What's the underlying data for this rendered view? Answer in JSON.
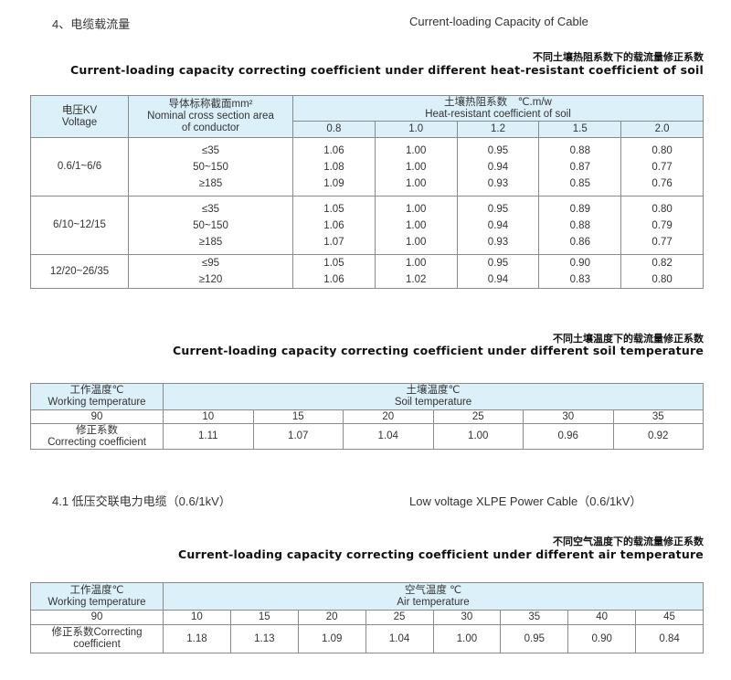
{
  "section4": {
    "cn": "4、电缆载流量",
    "en": "Current-loading Capacity of Cable"
  },
  "table1": {
    "caption_cn": "不同土壤热阻系数下的载流量修正系数",
    "caption_en": "Current-loading capacity correcting coefficient under different heat-resistant coefficient of soil",
    "h_voltage_cn": "电压KV",
    "h_voltage_en": "Voltage",
    "h_conductor_cn": "导体标称截面mm²",
    "h_conductor_en": "Nominal cross section area of conductor",
    "h_soil_cn": "土壤热阻系数　℃.m/w",
    "h_soil_en": "Heat-resistant coefficient of soil",
    "coefficients": [
      "0.8",
      "1.0",
      "1.2",
      "1.5",
      "2.0"
    ],
    "groups": [
      {
        "voltage": "0.6/1~6/6",
        "sections": [
          "≤35",
          "50~150",
          "≥185"
        ],
        "values": [
          [
            "1.06",
            "1.08",
            "1.09"
          ],
          [
            "1.00",
            "1.00",
            "1.00"
          ],
          [
            "0.95",
            "0.94",
            "0.93"
          ],
          [
            "0.88",
            "0.87",
            "0.85"
          ],
          [
            "0.80",
            "0.77",
            "0.76"
          ]
        ]
      },
      {
        "voltage": "6/10~12/15",
        "sections": [
          "≤35",
          "50~150",
          "≥185"
        ],
        "values": [
          [
            "1.05",
            "1.06",
            "1.07"
          ],
          [
            "1.00",
            "1.00",
            "1.00"
          ],
          [
            "0.95",
            "0.94",
            "0.93"
          ],
          [
            "0.89",
            "0.88",
            "0.86"
          ],
          [
            "0.80",
            "0.79",
            "0.77"
          ]
        ]
      },
      {
        "voltage": "12/20~26/35",
        "sections": [
          "≤95",
          "≥120"
        ],
        "values": [
          [
            "1.05",
            "1.06"
          ],
          [
            "1.00",
            "1.02"
          ],
          [
            "0.95",
            "0.94"
          ],
          [
            "0.90",
            "0.83"
          ],
          [
            "0.82",
            "0.80"
          ]
        ]
      }
    ]
  },
  "table2": {
    "caption_cn": "不同土壤温度下的载流量修正系数",
    "caption_en": "Current-loading capacity correcting coefficient under different soil temperature",
    "h_work_cn": "工作温度℃",
    "h_work_en": "Working temperature",
    "h_soil_cn": "土壤温度℃",
    "h_soil_en": "Soil temperature",
    "working_temp": "90",
    "temps": [
      "10",
      "15",
      "20",
      "25",
      "30",
      "35"
    ],
    "coef_label_cn": "修正系数",
    "coef_label_en": "Correcting coefficient",
    "coefs": [
      "1.11",
      "1.07",
      "1.04",
      "1.00",
      "0.96",
      "0.92"
    ]
  },
  "section41": {
    "cn": "4.1 低压交联电力电缆（0.6/1kV）",
    "en": "Low voltage XLPE Power Cable（0.6/1kV）"
  },
  "table3": {
    "caption_cn": "不同空气温度下的载流量修正系数",
    "caption_en": "Current-loading capacity correcting coefficient under different air temperature",
    "h_work_cn": "工作温度℃",
    "h_work_en": "Working temperature",
    "h_air_cn": "空气温度 ℃",
    "h_air_en": "Air temperature",
    "working_temp": "90",
    "temps": [
      "10",
      "15",
      "20",
      "25",
      "30",
      "35",
      "40",
      "45"
    ],
    "coef_label": "修正系数Correcting coefficient",
    "coefs": [
      "1.18",
      "1.13",
      "1.09",
      "1.04",
      "1.00",
      "0.95",
      "0.90",
      "0.84"
    ]
  }
}
